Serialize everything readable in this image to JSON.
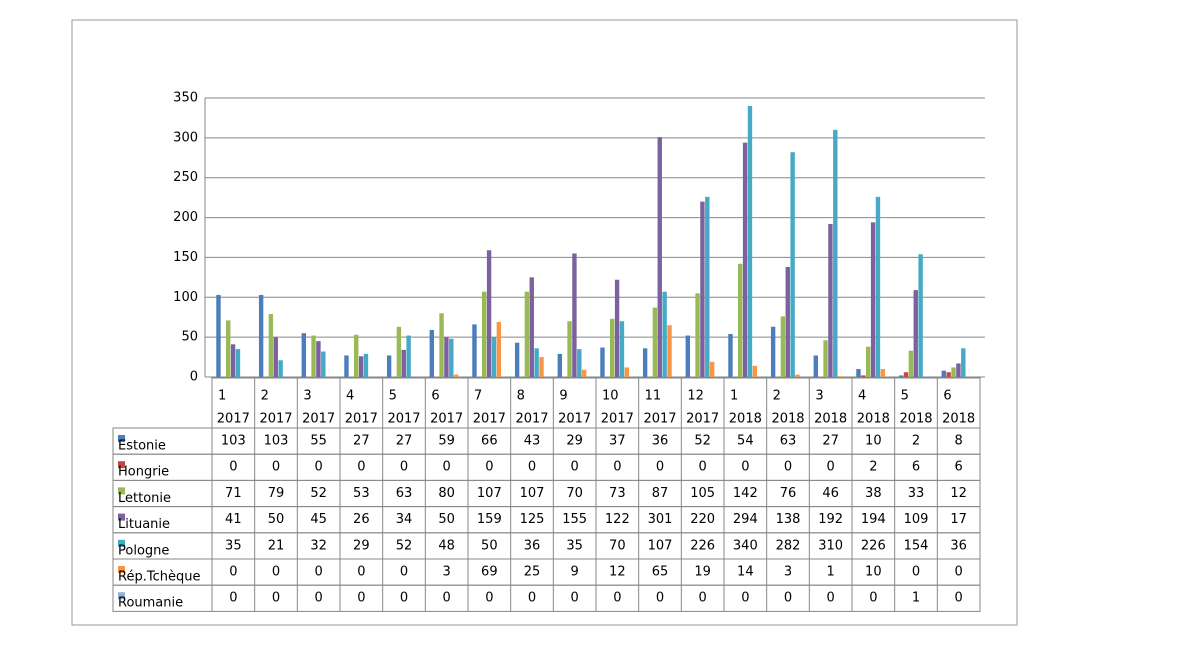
{
  "chart_data": {
    "type": "bar",
    "categories": [
      [
        "1",
        "2017"
      ],
      [
        "2",
        "2017"
      ],
      [
        "3",
        "2017"
      ],
      [
        "4",
        "2017"
      ],
      [
        "5",
        "2017"
      ],
      [
        "6",
        "2017"
      ],
      [
        "7",
        "2017"
      ],
      [
        "8",
        "2017"
      ],
      [
        "9",
        "2017"
      ],
      [
        "10",
        "2017"
      ],
      [
        "11",
        "2017"
      ],
      [
        "12",
        "2017"
      ],
      [
        "1",
        "2018"
      ],
      [
        "2",
        "2018"
      ],
      [
        "3",
        "2018"
      ],
      [
        "4",
        "2018"
      ],
      [
        "5",
        "2018"
      ],
      [
        "6",
        "2018"
      ]
    ],
    "series": [
      {
        "name": "Estonie",
        "color": "#4a7ebb",
        "values": [
          103,
          103,
          55,
          27,
          27,
          59,
          66,
          43,
          29,
          37,
          36,
          52,
          54,
          63,
          27,
          10,
          2,
          8
        ]
      },
      {
        "name": "Hongrie",
        "color": "#be4b48",
        "values": [
          0,
          0,
          0,
          0,
          0,
          0,
          0,
          0,
          0,
          0,
          0,
          0,
          0,
          0,
          0,
          2,
          6,
          6
        ]
      },
      {
        "name": "Lettonie",
        "color": "#98b954",
        "values": [
          71,
          79,
          52,
          53,
          63,
          80,
          107,
          107,
          70,
          73,
          87,
          105,
          142,
          76,
          46,
          38,
          33,
          12
        ]
      },
      {
        "name": "Lituanie",
        "color": "#7d60a0",
        "values": [
          41,
          50,
          45,
          26,
          34,
          50,
          159,
          125,
          155,
          122,
          301,
          220,
          294,
          138,
          192,
          194,
          109,
          17
        ]
      },
      {
        "name": "Pologne",
        "color": "#46aac5",
        "values": [
          35,
          21,
          32,
          29,
          52,
          48,
          50,
          36,
          35,
          70,
          107,
          226,
          340,
          282,
          310,
          226,
          154,
          36
        ]
      },
      {
        "name": "Rép.Tchèque",
        "color": "#f79646",
        "values": [
          0,
          0,
          0,
          0,
          0,
          3,
          69,
          25,
          9,
          12,
          65,
          19,
          14,
          3,
          1,
          10,
          0,
          0
        ]
      },
      {
        "name": "Roumanie",
        "color": "#95b3d7",
        "values": [
          0,
          0,
          0,
          0,
          0,
          0,
          0,
          0,
          0,
          0,
          0,
          0,
          0,
          0,
          0,
          0,
          1,
          0
        ]
      }
    ],
    "ylim": [
      0,
      350
    ],
    "yticks": [
      0,
      50,
      100,
      150,
      200,
      250,
      300,
      350
    ],
    "grid": true
  }
}
